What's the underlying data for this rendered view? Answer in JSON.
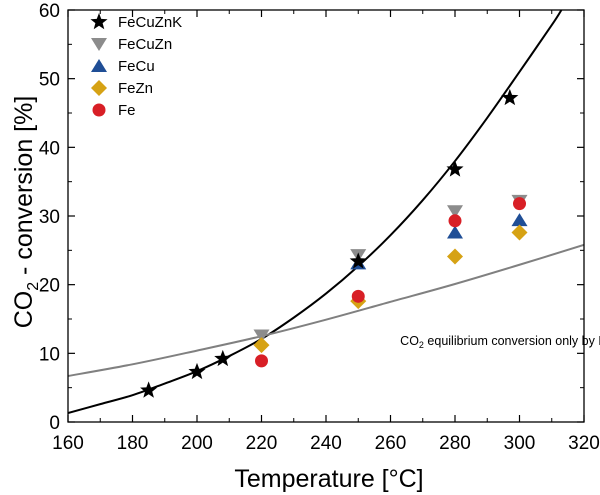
{
  "chart_data": {
    "type": "scatter",
    "xlabel": "Temperature [°C]",
    "ylabel_parts": [
      "CO",
      "2",
      " - conversion [%]"
    ],
    "xlim": [
      160,
      320
    ],
    "ylim": [
      0,
      60
    ],
    "x_ticks": [
      160,
      180,
      200,
      220,
      240,
      260,
      280,
      300,
      320
    ],
    "y_ticks": [
      0,
      10,
      20,
      30,
      40,
      50,
      60
    ],
    "grid": false,
    "legend_position": "top-left",
    "series": [
      {
        "name": "FeCuZnK",
        "marker": "star",
        "color": "#000000",
        "points": [
          [
            185,
            4.6
          ],
          [
            200,
            7.3
          ],
          [
            208,
            9.2
          ],
          [
            297,
            47.2
          ],
          [
            280,
            36.8
          ],
          [
            250,
            23.4
          ]
        ]
      },
      {
        "name": "FeCuZn",
        "marker": "triangle-down",
        "color": "#8c8c8c",
        "points": [
          [
            220,
            12.6
          ],
          [
            250,
            24.3
          ],
          [
            280,
            30.7
          ],
          [
            300,
            32.2
          ]
        ]
      },
      {
        "name": "FeCu",
        "marker": "triangle-up",
        "color": "#1f4e96",
        "points": [
          [
            250,
            23.1
          ],
          [
            280,
            27.6
          ],
          [
            300,
            29.4
          ]
        ]
      },
      {
        "name": "FeZn",
        "marker": "diamond",
        "color": "#d6a214",
        "points": [
          [
            220,
            11.2
          ],
          [
            250,
            17.6
          ],
          [
            280,
            24.1
          ],
          [
            300,
            27.6
          ]
        ]
      },
      {
        "name": "Fe",
        "marker": "circle",
        "color": "#d81f26",
        "points": [
          [
            220,
            8.9
          ],
          [
            250,
            18.3
          ],
          [
            280,
            29.3
          ],
          [
            300,
            31.8
          ]
        ]
      }
    ],
    "lines": [
      {
        "id": "fit",
        "color": "#000000",
        "points": [
          [
            160,
            1.3
          ],
          [
            170,
            2.6
          ],
          [
            180,
            3.9
          ],
          [
            190,
            5.6
          ],
          [
            200,
            7.4
          ],
          [
            210,
            9.6
          ],
          [
            220,
            12.1
          ],
          [
            230,
            15.2
          ],
          [
            240,
            18.7
          ],
          [
            250,
            22.7
          ],
          [
            260,
            27.2
          ],
          [
            270,
            32.3
          ],
          [
            280,
            38.0
          ],
          [
            290,
            44.3
          ],
          [
            300,
            51.0
          ],
          [
            310,
            57.8
          ],
          [
            313,
            60.0
          ]
        ]
      },
      {
        "id": "equilibrium",
        "color": "#808080",
        "points": [
          [
            160,
            6.7
          ],
          [
            180,
            8.4
          ],
          [
            200,
            10.4
          ],
          [
            220,
            12.5
          ],
          [
            240,
            14.9
          ],
          [
            260,
            17.5
          ],
          [
            280,
            20.1
          ],
          [
            300,
            22.9
          ],
          [
            320,
            25.8
          ]
        ]
      }
    ],
    "annotation": {
      "parts": [
        "CO",
        "2",
        " equilibrium conversion only by RWGS"
      ],
      "x": 263,
      "y": 11.2
    }
  }
}
